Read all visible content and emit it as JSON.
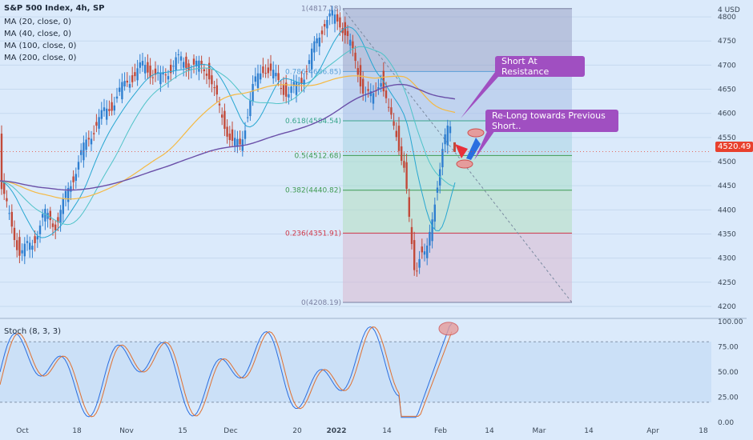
{
  "chart_data": {
    "type": "candlestick",
    "symbol_line": "S&P 500 Index, 4h, SP",
    "indicators": [
      {
        "name": "MA (20, close, 0)",
        "color": "#26a6d1"
      },
      {
        "name": "MA (40, close, 0)",
        "color": "#4fc3c8"
      },
      {
        "name": "MA (100, close, 0)",
        "color": "#f5b942"
      },
      {
        "name": "MA (200, close, 0)",
        "color": "#6a4fa8"
      }
    ],
    "currency": "USD",
    "ylim": [
      4180,
      4830
    ],
    "y_ticks": [
      4200,
      4250,
      4300,
      4350,
      4400,
      4450,
      4500,
      4550,
      4600,
      4650,
      4700,
      4750,
      4800
    ],
    "y_top_tick_partial": "4",
    "last_price": "4520.49",
    "x_ticks": [
      "Oct",
      "18",
      "Nov",
      "15",
      "Dec",
      "20",
      "2022",
      "14",
      "Feb",
      "14",
      "Mar",
      "14",
      "Apr",
      "18"
    ],
    "fib_levels": [
      {
        "label": "1(4817.18)",
        "value": 4817.18
      },
      {
        "label": "0.786(4686.85)",
        "value": 4686.85
      },
      {
        "label": "0.618(4584.54)",
        "value": 4584.54
      },
      {
        "label": "0.5(4512.68)",
        "value": 4512.68
      },
      {
        "label": "0.382(4440.82)",
        "value": 4440.82
      },
      {
        "label": "0.236(4351.91)",
        "value": 4351.91
      },
      {
        "label": "0(4208.19)",
        "value": 4208.19
      }
    ],
    "annotations": [
      "Short At Resistance",
      "Re-Long towards Previous Short.."
    ],
    "stoch": {
      "name": "Stoch (8, 3, 3)",
      "ylim": [
        0,
        100
      ],
      "y_ticks": [
        "100.00",
        "75.00",
        "50.00",
        "25.00",
        "0.00"
      ]
    }
  },
  "colors": {
    "up": "#2f7fd0",
    "down": "#c24a3a",
    "fib_line": "#6a4fa8",
    "callout": "#a04fc1"
  }
}
